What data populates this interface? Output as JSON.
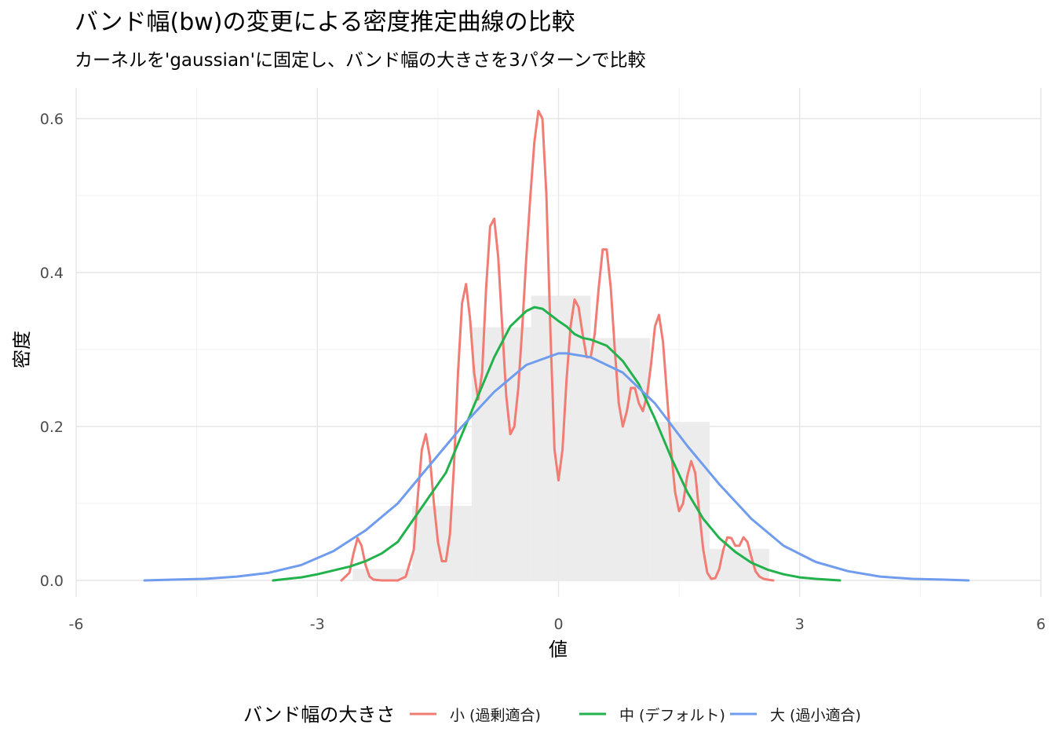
{
  "chart_data": {
    "type": "line",
    "title": "バンド幅(bw)の変更による密度推定曲線の比較",
    "subtitle": "カーネルを'gaussian'に固定し、バンド幅の大きさを3パターンで比較",
    "xlabel": "値",
    "ylabel": "密度",
    "xlim": [
      -6,
      6
    ],
    "ylim": [
      0,
      0.64
    ],
    "x_ticks": [
      -6,
      -3,
      0,
      3,
      6
    ],
    "y_ticks": [
      0.0,
      0.2,
      0.4,
      0.6
    ],
    "x_tick_labels": [
      "-6",
      "-3",
      "0",
      "3",
      "6"
    ],
    "y_tick_labels": [
      "0.0",
      "0.2",
      "0.4",
      "0.6"
    ],
    "grid": true,
    "legend_position": "bottom",
    "legend_title": "バンド幅の大きさ",
    "histogram": {
      "color": "#ebebeb",
      "bins": [
        {
          "x0": -2.56,
          "x1": -1.82,
          "y": 0.015
        },
        {
          "x0": -1.82,
          "x1": -1.08,
          "y": 0.097
        },
        {
          "x0": -1.08,
          "x1": -0.34,
          "y": 0.329
        },
        {
          "x0": -0.34,
          "x1": 0.4,
          "y": 0.37
        },
        {
          "x0": 0.4,
          "x1": 1.14,
          "y": 0.315
        },
        {
          "x0": 1.14,
          "x1": 1.88,
          "y": 0.206
        },
        {
          "x0": 1.88,
          "x1": 2.62,
          "y": 0.041
        }
      ]
    },
    "series": [
      {
        "name": "小 (過剰適合)",
        "color": "#f07c74",
        "x": [
          -2.7,
          -2.6,
          -2.55,
          -2.5,
          -2.45,
          -2.4,
          -2.35,
          -2.3,
          -2.2,
          -2.0,
          -1.9,
          -1.8,
          -1.75,
          -1.7,
          -1.65,
          -1.6,
          -1.55,
          -1.5,
          -1.45,
          -1.4,
          -1.35,
          -1.3,
          -1.25,
          -1.2,
          -1.15,
          -1.1,
          -1.05,
          -1.0,
          -0.95,
          -0.9,
          -0.85,
          -0.8,
          -0.75,
          -0.7,
          -0.65,
          -0.6,
          -0.55,
          -0.5,
          -0.45,
          -0.4,
          -0.35,
          -0.3,
          -0.25,
          -0.2,
          -0.15,
          -0.1,
          -0.05,
          0.0,
          0.05,
          0.1,
          0.15,
          0.2,
          0.25,
          0.3,
          0.35,
          0.4,
          0.45,
          0.5,
          0.55,
          0.6,
          0.65,
          0.7,
          0.75,
          0.8,
          0.85,
          0.9,
          0.95,
          1.0,
          1.05,
          1.1,
          1.15,
          1.2,
          1.25,
          1.3,
          1.35,
          1.4,
          1.45,
          1.5,
          1.55,
          1.6,
          1.65,
          1.7,
          1.75,
          1.8,
          1.85,
          1.9,
          1.95,
          2.0,
          2.05,
          2.1,
          2.15,
          2.2,
          2.25,
          2.3,
          2.35,
          2.4,
          2.45,
          2.5,
          2.55,
          2.6,
          2.67
        ],
        "y": [
          0.0,
          0.01,
          0.035,
          0.055,
          0.045,
          0.02,
          0.005,
          0.001,
          0.0,
          0.0,
          0.005,
          0.04,
          0.11,
          0.17,
          0.19,
          0.16,
          0.1,
          0.05,
          0.025,
          0.025,
          0.06,
          0.15,
          0.27,
          0.36,
          0.385,
          0.34,
          0.27,
          0.235,
          0.27,
          0.38,
          0.46,
          0.47,
          0.42,
          0.33,
          0.24,
          0.19,
          0.2,
          0.25,
          0.33,
          0.42,
          0.5,
          0.57,
          0.61,
          0.6,
          0.5,
          0.32,
          0.17,
          0.13,
          0.17,
          0.26,
          0.33,
          0.365,
          0.355,
          0.32,
          0.29,
          0.29,
          0.32,
          0.38,
          0.43,
          0.43,
          0.38,
          0.3,
          0.23,
          0.2,
          0.22,
          0.25,
          0.25,
          0.23,
          0.22,
          0.24,
          0.28,
          0.33,
          0.345,
          0.31,
          0.24,
          0.17,
          0.115,
          0.09,
          0.1,
          0.135,
          0.155,
          0.14,
          0.09,
          0.04,
          0.01,
          0.002,
          0.003,
          0.015,
          0.04,
          0.056,
          0.055,
          0.045,
          0.045,
          0.056,
          0.05,
          0.03,
          0.012,
          0.005,
          0.002,
          0.001,
          0.0
        ]
      },
      {
        "name": "中 (デフォルト)",
        "color": "#22b24c",
        "x": [
          -3.55,
          -3.2,
          -3.0,
          -2.8,
          -2.6,
          -2.4,
          -2.2,
          -2.0,
          -1.8,
          -1.6,
          -1.4,
          -1.2,
          -1.0,
          -0.8,
          -0.6,
          -0.4,
          -0.3,
          -0.2,
          -0.1,
          0.0,
          0.1,
          0.2,
          0.3,
          0.4,
          0.6,
          0.8,
          1.0,
          1.2,
          1.4,
          1.6,
          1.8,
          2.0,
          2.2,
          2.4,
          2.6,
          2.8,
          3.0,
          3.2,
          3.5
        ],
        "y": [
          0.0,
          0.004,
          0.008,
          0.013,
          0.018,
          0.025,
          0.035,
          0.05,
          0.08,
          0.11,
          0.14,
          0.19,
          0.24,
          0.29,
          0.33,
          0.35,
          0.355,
          0.353,
          0.345,
          0.337,
          0.33,
          0.32,
          0.315,
          0.313,
          0.305,
          0.285,
          0.255,
          0.21,
          0.16,
          0.115,
          0.08,
          0.055,
          0.037,
          0.023,
          0.014,
          0.008,
          0.004,
          0.002,
          0.0
        ]
      },
      {
        "name": "大 (過小適合)",
        "color": "#6f9ced",
        "x": [
          -5.15,
          -4.8,
          -4.4,
          -4.0,
          -3.6,
          -3.2,
          -2.8,
          -2.4,
          -2.0,
          -1.6,
          -1.2,
          -0.8,
          -0.4,
          0.0,
          0.1,
          0.4,
          0.8,
          1.2,
          1.6,
          2.0,
          2.4,
          2.8,
          3.2,
          3.6,
          4.0,
          4.4,
          4.8,
          5.1
        ],
        "y": [
          0.0,
          0.001,
          0.002,
          0.005,
          0.01,
          0.02,
          0.038,
          0.065,
          0.1,
          0.15,
          0.2,
          0.245,
          0.28,
          0.295,
          0.295,
          0.29,
          0.27,
          0.23,
          0.175,
          0.125,
          0.08,
          0.045,
          0.024,
          0.012,
          0.005,
          0.002,
          0.001,
          0.0
        ]
      }
    ]
  }
}
